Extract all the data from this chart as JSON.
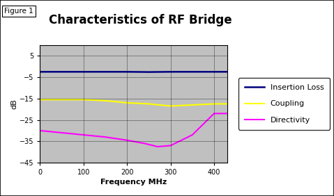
{
  "title": "Characteristics of RF Bridge",
  "figure_label": "Figure 1",
  "xlabel": "Frequency MHz",
  "ylabel": "dB",
  "xlim": [
    0,
    430
  ],
  "ylim": [
    -45,
    10
  ],
  "yticks": [
    5,
    -5,
    -15,
    -25,
    -35,
    -45
  ],
  "xticks": [
    0,
    100,
    200,
    300,
    400
  ],
  "background_color": "#c0c0c0",
  "outer_background": "#ffffff",
  "insertion_loss": {
    "freq": [
      0,
      10,
      50,
      100,
      150,
      200,
      250,
      300,
      350,
      400,
      430
    ],
    "db": [
      -2.5,
      -2.5,
      -2.5,
      -2.5,
      -2.5,
      -2.5,
      -2.6,
      -2.5,
      -2.5,
      -2.5,
      -2.5
    ],
    "color": "#000080",
    "label": "Insertion Loss",
    "linewidth": 1.8
  },
  "coupling": {
    "freq": [
      0,
      50,
      100,
      150,
      200,
      250,
      300,
      350,
      400,
      430
    ],
    "db": [
      -15.5,
      -15.5,
      -15.5,
      -16,
      -17,
      -17.5,
      -18.5,
      -18,
      -17.5,
      -17.5
    ],
    "color": "#FFFF00",
    "label": "Coupling",
    "linewidth": 1.5
  },
  "directivity": {
    "freq": [
      0,
      50,
      100,
      150,
      200,
      240,
      270,
      300,
      350,
      400,
      420,
      430
    ],
    "db": [
      -30,
      -31,
      -32,
      -33,
      -34.5,
      -36,
      -37.5,
      -37,
      -32,
      -22,
      -22,
      -22
    ],
    "color": "#FF00FF",
    "label": "Directivity",
    "linewidth": 1.5
  },
  "legend_colors": {
    "Insertion Loss": "#000080",
    "Coupling": "#FFFF00",
    "Directivity": "#FF00FF"
  },
  "grid_color": "#000000",
  "title_fontsize": 12,
  "axis_label_fontsize": 8,
  "tick_fontsize": 7,
  "legend_fontsize": 8,
  "figure_label_fontsize": 7.5
}
